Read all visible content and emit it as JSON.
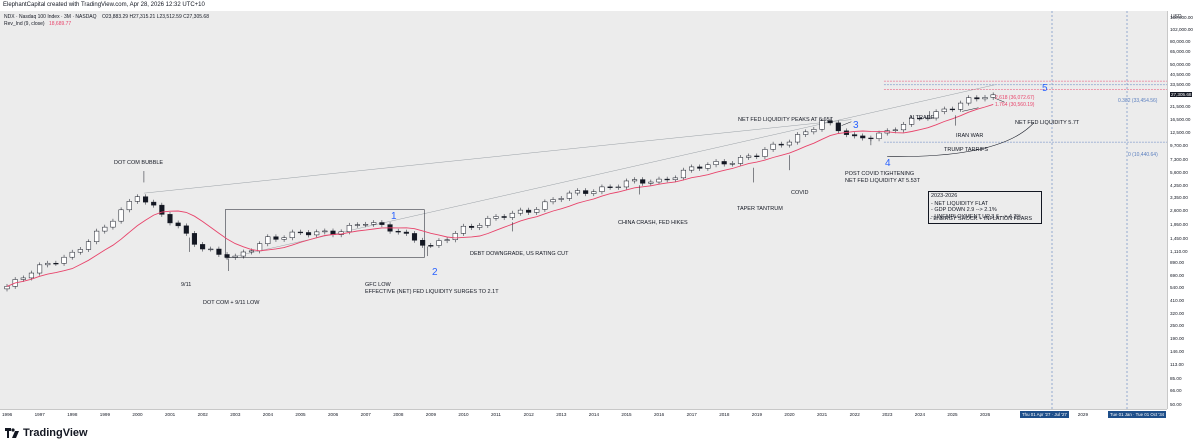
{
  "header": {
    "title": "ElephantCapital created with TradingView.com, Apr 28, 2026 12:32 UTC+10"
  },
  "legend": {
    "symbol": "NDX · Nasdaq 100 Index · 3M · NASDAQ",
    "ohlc": "O23,883.29  H27,315.21  L23,512.59  C27,305.68",
    "indicator_name": "Rev_Ind  (9, close)",
    "indicator_value": "18,689.77"
  },
  "price_axis": {
    "currency": "USD",
    "ticks": [
      "130,000.00",
      "102,000.00",
      "80,000.00",
      "65,000.00",
      "50,000.00",
      "40,500.00",
      "33,500.00",
      "27,305.68",
      "21,500.00",
      "16,500.00",
      "12,500.00",
      "9,700.00",
      "7,300.00",
      "5,600.00",
      "4,250.00",
      "3,350.00",
      "2,600.00",
      "1,950.00",
      "1,450.00",
      "1,110.00",
      "890.00",
      "690.00",
      "540.00",
      "410.00",
      "320.00",
      "250.00",
      "190.00",
      "146.00",
      "113.00",
      "85.00",
      "66.00",
      "50.00"
    ],
    "last_price": "27,305.68",
    "last_price_sub": "24:54"
  },
  "time_axis": {
    "ticks": [
      "1996",
      "1997",
      "1998",
      "1999",
      "2000",
      "2001",
      "2002",
      "2003",
      "2004",
      "2005",
      "2006",
      "2007",
      "2008",
      "2009",
      "2010",
      "2011",
      "2012",
      "2013",
      "2014",
      "2015",
      "2016",
      "2017",
      "2018",
      "2019",
      "2020",
      "2021",
      "2022",
      "2023",
      "2024",
      "2025",
      "2026",
      "2029"
    ],
    "range_label": "Thu 01 Apr '27 · Jul '27",
    "range_label2": "Tue 01 Jan · Tue 01 Oct '34"
  },
  "fib_levels": {
    "l2618": "2.618 (36,072.67)",
    "l1764": "1.764 (30,560.19)",
    "l0382": "0.382 (33,454.56)",
    "l0": "0 (10,440.64)"
  },
  "annotations": {
    "dotcom_bubble": "DOT COM BUBBLE",
    "nine_eleven": "9/11",
    "dotcom_low": "DOT COM + 9/11 LOW",
    "gfc_low_1": "GFC LOW",
    "gfc_low_2": "EFFECTIVE (NET) FED LIQUIDITY SURGES TO 2.1T",
    "debt_downgrade": "DEBT DOWNGRADE, US RATING CUT",
    "china_crash": "CHINA CRASH, FED HIKES",
    "taper": "TAPER TANTRUM",
    "covid": "COVID",
    "net_fed_peak": "NET FED LIQUIDITY PEAKS AT 6.65T",
    "post_covid_1": "POST COVID TIGHTENING",
    "post_covid_2": "NET FED LIQUIDITY AT 5.53T",
    "ai_trade": "AI TRADE",
    "trump_tariffs": "TRUMP TARRIFS",
    "iran_war": "IRAN WAR",
    "net_fed_57": "NET FED LIQUIDITY 5.7T",
    "summary_title": "2023-2026",
    "summary_lines": [
      "- NET LIQUIDITY FLAT",
      "- GDP DOWN 2.9 --> 2.1%",
      "- UNEMPLOYMENT UP 3.6 --> 4.3%",
      "- ENERGY SHOCK + INFLATION FEARS"
    ]
  },
  "waves": {
    "w1": "1",
    "w2": "2",
    "w3": "3",
    "w4": "4",
    "w5": "5"
  },
  "footer": {
    "logo_text": "TradingView"
  },
  "colors": {
    "up_candle": "#ffffff",
    "down_candle": "#131722",
    "ma_line": "#e8446b",
    "wave_label": "#2962ff",
    "fib_pink": "#e8446b",
    "fib_blue": "#5b7fbf"
  },
  "chart_data": {
    "type": "candlestick",
    "title": "",
    "xlabel": "",
    "ylabel": "",
    "y_scale": "log",
    "ylim": [
      48,
      140000
    ],
    "x_range": [
      "1996",
      "2034"
    ],
    "interval": "3M",
    "close_approx": {
      "x": [
        "1996",
        "1997",
        "1998",
        "1999",
        "2000",
        "2001",
        "2002",
        "2003",
        "2004",
        "2005",
        "2006",
        "2007",
        "2008",
        "2009",
        "2010",
        "2011",
        "2012",
        "2013",
        "2014",
        "2015",
        "2016",
        "2017",
        "2018",
        "2019",
        "2020",
        "2021",
        "2022",
        "2023",
        "2024",
        "2025",
        "2026"
      ],
      "values": [
        570,
        800,
        1100,
        1800,
        3700,
        2050,
        1230,
        960,
        1500,
        1600,
        1700,
        2000,
        1750,
        1200,
        1850,
        2200,
        2650,
        3400,
        4000,
        4500,
        4800,
        6000,
        7000,
        8000,
        11000,
        15500,
        11500,
        12500,
        17500,
        21000,
        27305.68
      ]
    },
    "ma_series": {
      "name": "Rev_Ind (9, close)",
      "last_value": 18689.77
    },
    "fib_levels": [
      {
        "label": "2.618",
        "value": 36072.67
      },
      {
        "label": "1.764",
        "value": 30560.19
      },
      {
        "label": "0.382",
        "value": 33454.56
      },
      {
        "label": "0",
        "value": 10440.64
      }
    ],
    "legend": "top-left",
    "grid": false
  }
}
